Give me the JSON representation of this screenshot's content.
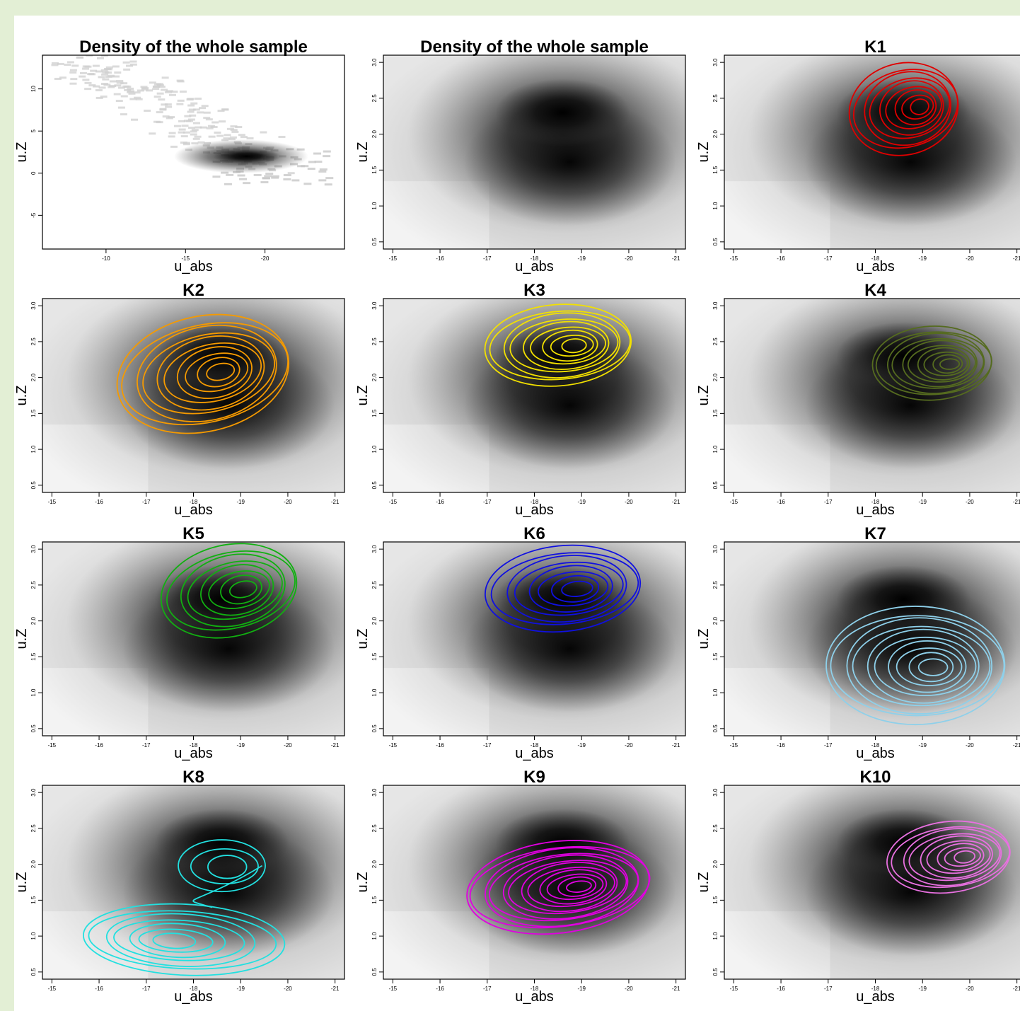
{
  "figure": {
    "background": "#e3efd5"
  },
  "chart_data": [
    {
      "type": "heatmap",
      "title": "Density of the whole sample",
      "xlabel": "u_abs",
      "ylabel": "u.Z",
      "xlim": [
        -6,
        -25
      ],
      "ylim": [
        -9,
        14
      ],
      "xticks": [
        -10,
        -15,
        -20
      ],
      "xtick_labels": [
        "-10",
        "-15",
        "-20"
      ],
      "yticks": [
        -5,
        0,
        5,
        10
      ],
      "ytick_labels": [
        "-5",
        "0",
        "5",
        "10"
      ],
      "peak": {
        "x": -18.5,
        "y": 2.0
      },
      "contours": []
    },
    {
      "type": "heatmap",
      "title": "Density of the whole sample",
      "xlabel": "u_abs",
      "ylabel": "u.Z",
      "xlim": [
        -14.8,
        -21.2
      ],
      "ylim": [
        0.4,
        3.1
      ],
      "xticks": [
        -15,
        -16,
        -17,
        -18,
        -19,
        -20,
        -21
      ],
      "xtick_labels": [
        "-15",
        "-16",
        "-17",
        "-18",
        "-19",
        "-20",
        "-21"
      ],
      "yticks": [
        0.5,
        1.0,
        1.5,
        2.0,
        2.5,
        3.0
      ],
      "ytick_labels": [
        "0.5",
        "1.0",
        "1.5",
        "2.0",
        "2.5",
        "3.0"
      ],
      "peak": {
        "x": -18.6,
        "y": 2.3
      },
      "contours": []
    },
    {
      "type": "heatmap",
      "title": "K1",
      "xlabel": "u_abs",
      "ylabel": "u.Z",
      "xlim": [
        -14.8,
        -21.2
      ],
      "ylim": [
        0.4,
        3.1
      ],
      "xticks": [
        -15,
        -16,
        -17,
        -18,
        -19,
        -20,
        -21
      ],
      "xtick_labels": [
        "-15",
        "-16",
        "-17",
        "-18",
        "-19",
        "-20",
        "-21"
      ],
      "yticks": [
        0.5,
        1.0,
        1.5,
        2.0,
        2.5,
        3.0
      ],
      "ytick_labels": [
        "0.5",
        "1.0",
        "1.5",
        "2.0",
        "2.5",
        "3.0"
      ],
      "peak": {
        "x": -18.6,
        "y": 2.3
      },
      "contours": [
        {
          "color": "#e00000",
          "cx": -18.6,
          "cy": 2.35,
          "rx": 1.2,
          "ry": 0.62,
          "levels": 9,
          "tilt": -0.25
        }
      ]
    },
    {
      "type": "heatmap",
      "title": "K2",
      "xlabel": "u_abs",
      "ylabel": "u.Z",
      "xlim": [
        -14.8,
        -21.2
      ],
      "ylim": [
        0.4,
        3.1
      ],
      "xticks": [
        -15,
        -16,
        -17,
        -18,
        -19,
        -20,
        -21
      ],
      "xtick_labels": [
        "-15",
        "-16",
        "-17",
        "-18",
        "-19",
        "-20",
        "-21"
      ],
      "yticks": [
        0.5,
        1.0,
        1.5,
        2.0,
        2.5,
        3.0
      ],
      "ytick_labels": [
        "0.5",
        "1.0",
        "1.5",
        "2.0",
        "2.5",
        "3.0"
      ],
      "peak": {
        "x": -18.6,
        "y": 2.3
      },
      "contours": [
        {
          "color": "#f59a00",
          "cx": -18.2,
          "cy": 2.05,
          "rx": 1.9,
          "ry": 0.78,
          "levels": 10,
          "tilt": -0.22
        }
      ]
    },
    {
      "type": "heatmap",
      "title": "K3",
      "xlabel": "u_abs",
      "ylabel": "u.Z",
      "xlim": [
        -14.8,
        -21.2
      ],
      "ylim": [
        0.4,
        3.1
      ],
      "xticks": [
        -15,
        -16,
        -17,
        -18,
        -19,
        -20,
        -21
      ],
      "xtick_labels": [
        "-15",
        "-16",
        "-17",
        "-18",
        "-19",
        "-20",
        "-21"
      ],
      "yticks": [
        0.5,
        1.0,
        1.5,
        2.0,
        2.5,
        3.0
      ],
      "ytick_labels": [
        "0.5",
        "1.0",
        "1.5",
        "2.0",
        "2.5",
        "3.0"
      ],
      "peak": {
        "x": -18.6,
        "y": 2.3
      },
      "contours": [
        {
          "color": "#f2e000",
          "cx": -18.5,
          "cy": 2.45,
          "rx": 1.6,
          "ry": 0.55,
          "levels": 9,
          "tilt": -0.08
        }
      ]
    },
    {
      "type": "heatmap",
      "title": "K4",
      "xlabel": "u_abs",
      "ylabel": "u.Z",
      "xlim": [
        -14.8,
        -21.2
      ],
      "ylim": [
        0.4,
        3.1
      ],
      "xticks": [
        -15,
        -16,
        -17,
        -18,
        -19,
        -20,
        -21
      ],
      "xtick_labels": [
        "-15",
        "-16",
        "-17",
        "-18",
        "-19",
        "-20",
        "-21"
      ],
      "yticks": [
        0.5,
        1.0,
        1.5,
        2.0,
        2.5,
        3.0
      ],
      "ytick_labels": [
        "0.5",
        "1.0",
        "1.5",
        "2.0",
        "2.5",
        "3.0"
      ],
      "peak": {
        "x": -18.6,
        "y": 2.3
      },
      "contours": [
        {
          "color": "#556b1f",
          "cx": -19.2,
          "cy": 2.2,
          "rx": 1.3,
          "ry": 0.5,
          "levels": 10,
          "tilt": -0.05
        }
      ]
    },
    {
      "type": "heatmap",
      "title": "K5",
      "xlabel": "u_abs",
      "ylabel": "u.Z",
      "xlim": [
        -14.8,
        -21.2
      ],
      "ylim": [
        0.4,
        3.1
      ],
      "xticks": [
        -15,
        -16,
        -17,
        -18,
        -19,
        -20,
        -21
      ],
      "xtick_labels": [
        "-15",
        "-16",
        "-17",
        "-18",
        "-19",
        "-20",
        "-21"
      ],
      "yticks": [
        0.5,
        1.0,
        1.5,
        2.0,
        2.5,
        3.0
      ],
      "ytick_labels": [
        "0.5",
        "1.0",
        "1.5",
        "2.0",
        "2.5",
        "3.0"
      ],
      "peak": {
        "x": -18.6,
        "y": 2.3
      },
      "contours": [
        {
          "color": "#11b011",
          "cx": -18.75,
          "cy": 2.42,
          "rx": 1.5,
          "ry": 0.62,
          "levels": 8,
          "tilt": -0.22
        }
      ]
    },
    {
      "type": "heatmap",
      "title": "K6",
      "xlabel": "u_abs",
      "ylabel": "u.Z",
      "xlim": [
        -14.8,
        -21.2
      ],
      "ylim": [
        0.4,
        3.1
      ],
      "xticks": [
        -15,
        -16,
        -17,
        -18,
        -19,
        -20,
        -21
      ],
      "xtick_labels": [
        "-15",
        "-16",
        "-17",
        "-18",
        "-19",
        "-20",
        "-21"
      ],
      "yticks": [
        0.5,
        1.0,
        1.5,
        2.0,
        2.5,
        3.0
      ],
      "ytick_labels": [
        "0.5",
        "1.0",
        "1.5",
        "2.0",
        "2.5",
        "3.0"
      ],
      "peak": {
        "x": -18.6,
        "y": 2.3
      },
      "contours": [
        {
          "color": "#1010e0",
          "cx": -18.6,
          "cy": 2.45,
          "rx": 1.7,
          "ry": 0.58,
          "levels": 8,
          "tilt": -0.1
        }
      ]
    },
    {
      "type": "heatmap",
      "title": "K7",
      "xlabel": "u_abs",
      "ylabel": "u.Z",
      "xlim": [
        -14.8,
        -21.2
      ],
      "ylim": [
        0.4,
        3.1
      ],
      "xticks": [
        -15,
        -16,
        -17,
        -18,
        -19,
        -20,
        -21
      ],
      "xtick_labels": [
        "-15",
        "-16",
        "-17",
        "-18",
        "-19",
        "-20",
        "-21"
      ],
      "yticks": [
        0.5,
        1.0,
        1.5,
        2.0,
        2.5,
        3.0
      ],
      "ytick_labels": [
        "0.5",
        "1.0",
        "1.5",
        "2.0",
        "2.5",
        "3.0"
      ],
      "peak": {
        "x": -18.6,
        "y": 2.3
      },
      "contours": [
        {
          "color": "#8ed0ea",
          "cx": -18.85,
          "cy": 1.38,
          "rx": 1.95,
          "ry": 0.8,
          "levels": 10,
          "tilt": 0.0
        }
      ]
    },
    {
      "type": "heatmap",
      "title": "K8",
      "xlabel": "u_abs",
      "ylabel": "u.Z",
      "xlim": [
        -14.8,
        -21.2
      ],
      "ylim": [
        0.4,
        3.1
      ],
      "xticks": [
        -15,
        -16,
        -17,
        -18,
        -19,
        -20,
        -21
      ],
      "xtick_labels": [
        "-15",
        "-16",
        "-17",
        "-18",
        "-19",
        "-20",
        "-21"
      ],
      "yticks": [
        0.5,
        1.0,
        1.5,
        2.0,
        2.5,
        3.0
      ],
      "ytick_labels": [
        "0.5",
        "1.0",
        "1.5",
        "2.0",
        "2.5",
        "3.0"
      ],
      "peak": {
        "x": -18.6,
        "y": 2.3
      },
      "contours": [
        {
          "color": "#22e0e0",
          "cx": -17.8,
          "cy": 0.95,
          "rx": 2.2,
          "ry": 0.48,
          "levels": 7,
          "tilt": 0.05
        },
        {
          "color": "#22e0e0",
          "cx": -18.6,
          "cy": 1.98,
          "rx": 0.95,
          "ry": 0.35,
          "levels": 3,
          "tilt": 0.0
        }
      ]
    },
    {
      "type": "heatmap",
      "title": "K9",
      "xlabel": "u_abs",
      "ylabel": "u.Z",
      "xlim": [
        -14.8,
        -21.2
      ],
      "ylim": [
        0.4,
        3.1
      ],
      "xticks": [
        -15,
        -16,
        -17,
        -18,
        -19,
        -20,
        -21
      ],
      "xtick_labels": [
        "-15",
        "-16",
        "-17",
        "-18",
        "-19",
        "-20",
        "-21"
      ],
      "yticks": [
        0.5,
        1.0,
        1.5,
        2.0,
        2.5,
        3.0
      ],
      "ytick_labels": [
        "0.5",
        "1.0",
        "1.5",
        "2.0",
        "2.5",
        "3.0"
      ],
      "peak": {
        "x": -18.6,
        "y": 2.3
      },
      "contours": [
        {
          "color": "#e000e0",
          "cx": -18.5,
          "cy": 1.68,
          "rx": 2.0,
          "ry": 0.62,
          "levels": 12,
          "tilt": -0.12
        }
      ]
    },
    {
      "type": "heatmap",
      "title": "K10",
      "xlabel": "u_abs",
      "ylabel": "u.Z",
      "xlim": [
        -14.8,
        -21.2
      ],
      "ylim": [
        0.4,
        3.1
      ],
      "xticks": [
        -15,
        -16,
        -17,
        -18,
        -19,
        -20,
        -21
      ],
      "xtick_labels": [
        "-15",
        "-16",
        "-17",
        "-18",
        "-19",
        "-20",
        "-21"
      ],
      "yticks": [
        0.5,
        1.0,
        1.5,
        2.0,
        2.5,
        3.0
      ],
      "ytick_labels": [
        "0.5",
        "1.0",
        "1.5",
        "2.0",
        "2.5",
        "3.0"
      ],
      "peak": {
        "x": -18.6,
        "y": 2.3
      },
      "contours": [
        {
          "color": "#e870e0",
          "cx": -19.55,
          "cy": 2.1,
          "rx": 1.35,
          "ry": 0.48,
          "levels": 9,
          "tilt": -0.12
        }
      ]
    }
  ]
}
